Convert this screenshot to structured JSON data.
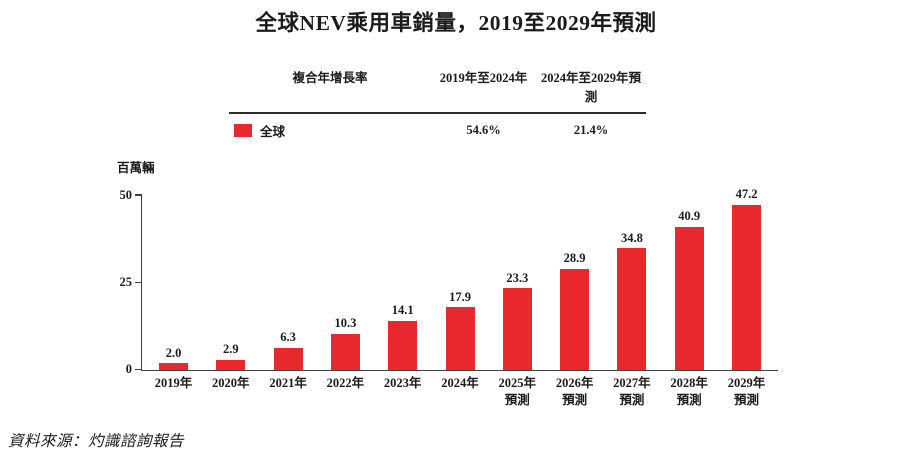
{
  "title": "全球NEV乘用車銷量，2019至2029年預測",
  "cagr_table": {
    "headers": [
      "複合年增長率",
      "2019年至2024年",
      "2024年至2029年預測"
    ],
    "row": {
      "label": "全球",
      "values": [
        "54.6%",
        "21.4%"
      ]
    }
  },
  "chart_data": {
    "type": "bar",
    "title": "全球NEV乘用車銷量，2019至2029年預測",
    "xlabel": "",
    "ylabel": "百萬輛",
    "ylim": [
      0,
      50
    ],
    "yticks": [
      "0",
      "25",
      "50"
    ],
    "grid": false,
    "legend_position": "top-table",
    "bar_color": "#E8282C",
    "series_name": "全球",
    "categories": [
      "2019年",
      "2020年",
      "2021年",
      "2022年",
      "2023年",
      "2024年",
      "2025年預測",
      "2026年預測",
      "2027年預測",
      "2028年預測",
      "2029年預測"
    ],
    "category_lines": [
      [
        "2019年"
      ],
      [
        "2020年"
      ],
      [
        "2021年"
      ],
      [
        "2022年"
      ],
      [
        "2023年"
      ],
      [
        "2024年"
      ],
      [
        "2025年",
        "預測"
      ],
      [
        "2026年",
        "預測"
      ],
      [
        "2027年",
        "預測"
      ],
      [
        "2028年",
        "預測"
      ],
      [
        "2029年",
        "預測"
      ]
    ],
    "values": [
      2.0,
      2.9,
      6.3,
      10.3,
      14.1,
      17.9,
      23.3,
      28.9,
      34.8,
      40.9,
      47.2
    ],
    "value_labels": [
      "2.0",
      "2.9",
      "6.3",
      "10.3",
      "14.1",
      "17.9",
      "23.3",
      "28.9",
      "34.8",
      "40.9",
      "47.2"
    ]
  },
  "source": "資料來源：灼識諮詢報告",
  "colors": {
    "accent_red": "#E8282C",
    "axis": "#404040",
    "text": "#1B1B1B"
  }
}
